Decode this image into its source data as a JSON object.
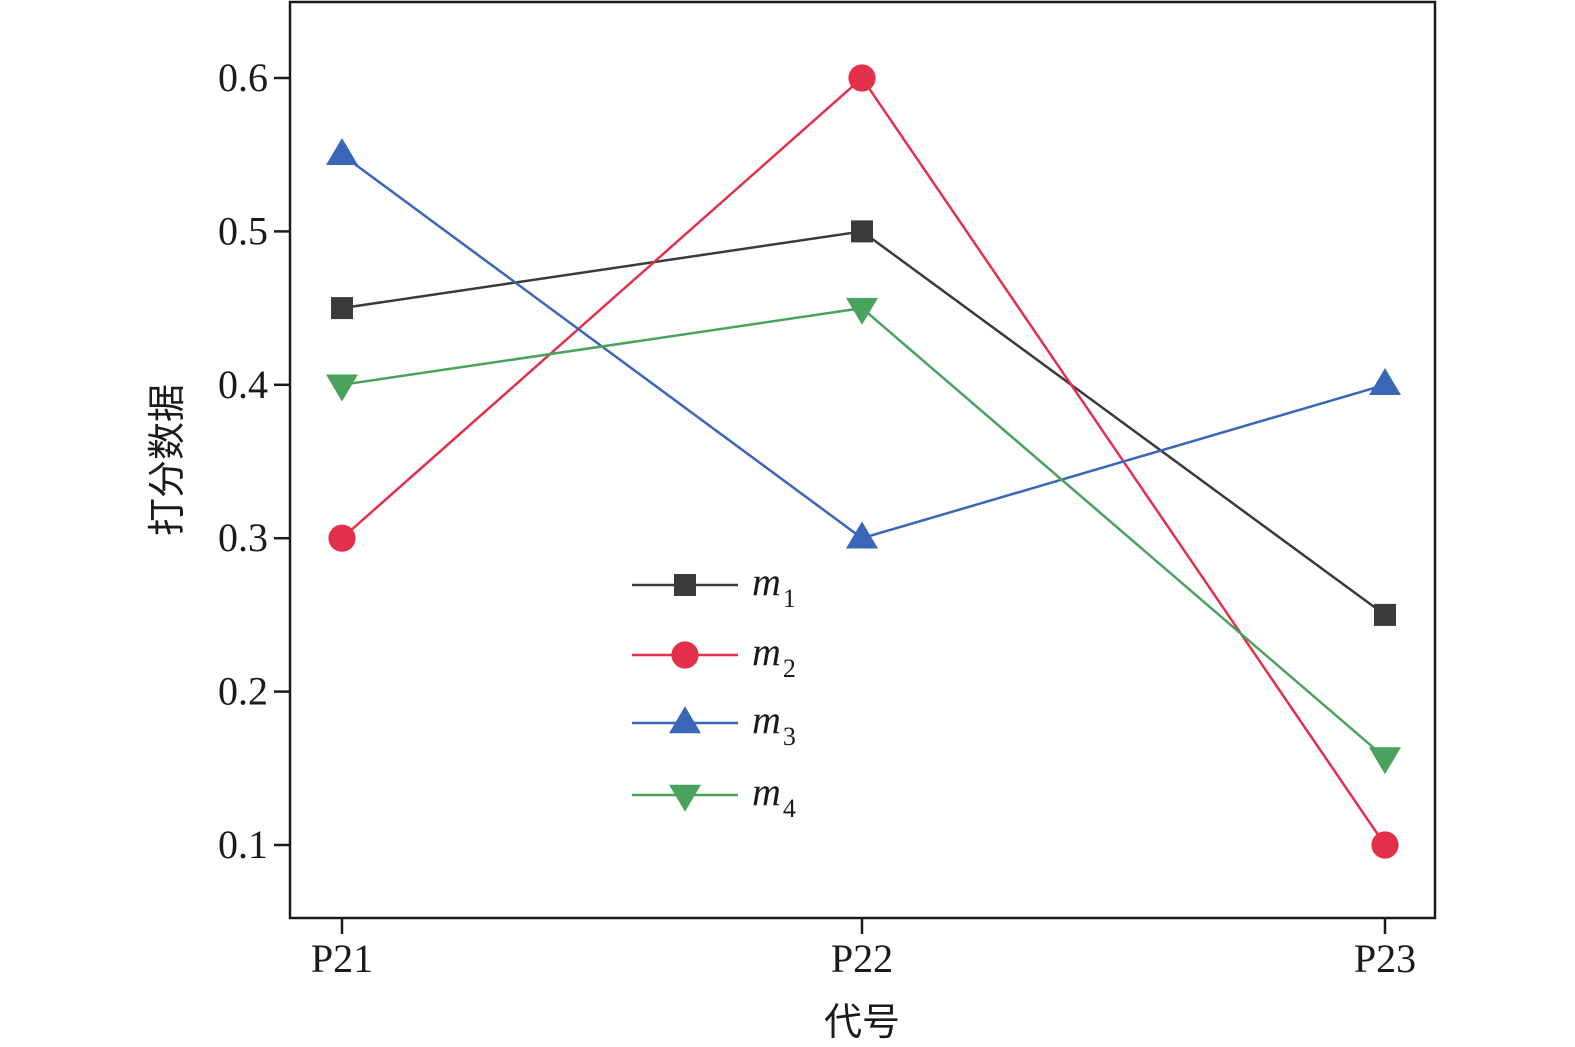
{
  "chart_data": {
    "type": "line",
    "title": "",
    "xlabel": "代号",
    "ylabel": "打分数据",
    "categories": [
      "P21",
      "P22",
      "P23"
    ],
    "ylim": [
      0.05,
      0.65
    ],
    "yticks": [
      0.1,
      0.2,
      0.3,
      0.4,
      0.5,
      0.6
    ],
    "ytick_labels": [
      "0.1",
      "0.2",
      "0.3",
      "0.4",
      "0.5",
      "0.6"
    ],
    "grid": false,
    "legend_position": "center-left",
    "series": [
      {
        "name": "m",
        "subscript": "1",
        "color": "#3a3a3a",
        "marker": "square",
        "values": [
          0.45,
          0.5,
          0.25
        ]
      },
      {
        "name": "m",
        "subscript": "2",
        "color": "#e3304a",
        "marker": "circle",
        "values": [
          0.3,
          0.6,
          0.1
        ]
      },
      {
        "name": "m",
        "subscript": "3",
        "color": "#3a66b8",
        "marker": "triangle-up",
        "values": [
          0.55,
          0.3,
          0.4
        ]
      },
      {
        "name": "m",
        "subscript": "4",
        "color": "#4aa35c",
        "marker": "triangle-down",
        "values": [
          0.4,
          0.45,
          0.157
        ]
      }
    ]
  }
}
